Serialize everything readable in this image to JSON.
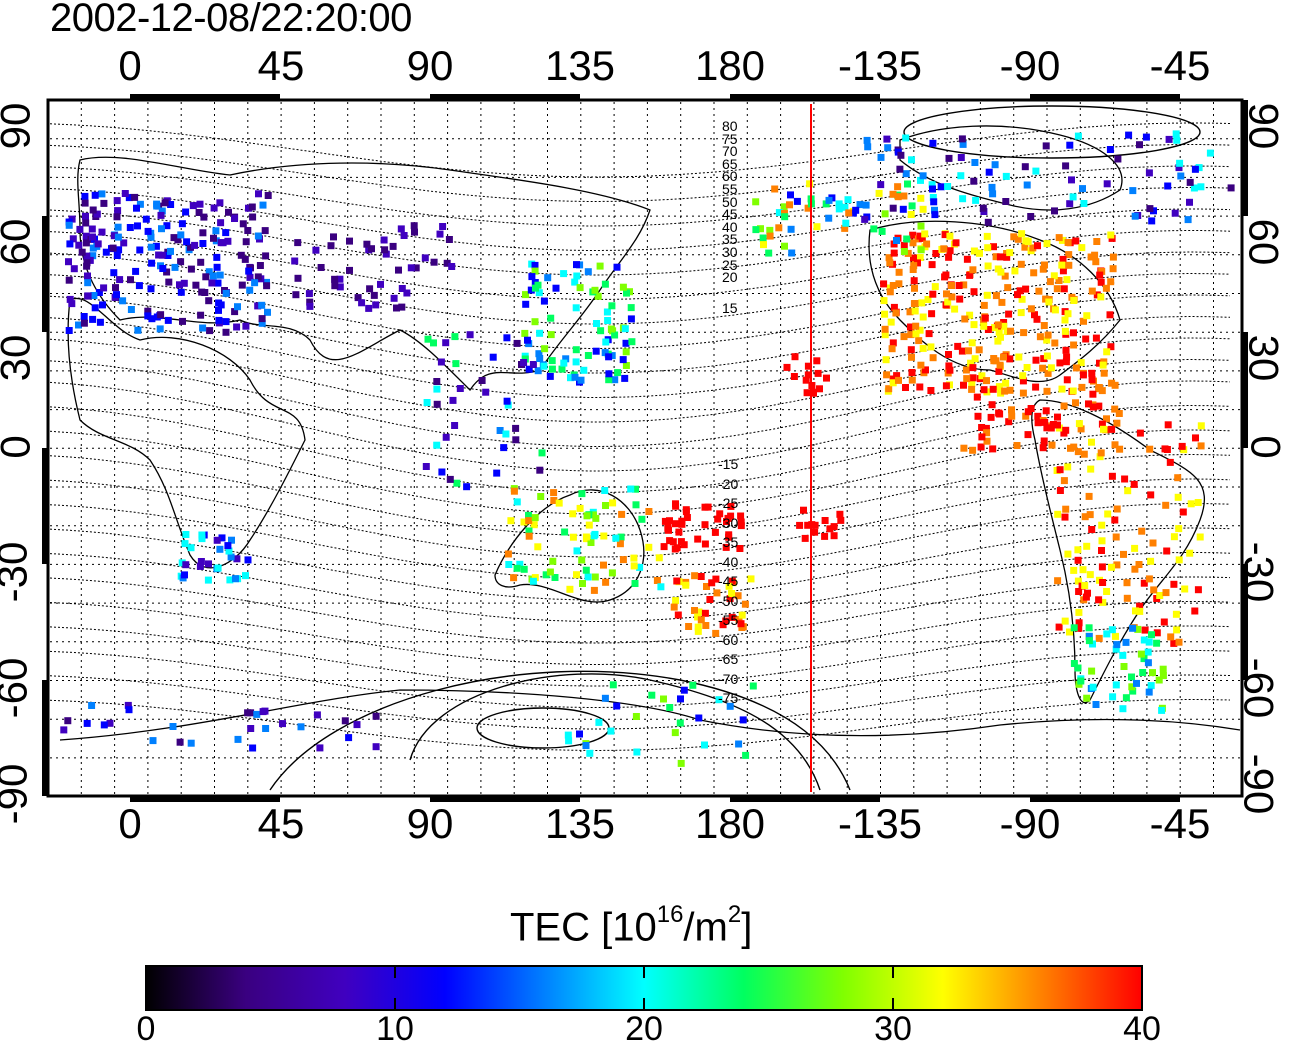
{
  "title": "2002-12-08/22:20:00",
  "map": {
    "top_lon_ticks": [
      "0",
      "45",
      "90",
      "135",
      "180",
      "-135",
      "-90",
      "-45"
    ],
    "bottom_lon_ticks": [
      "0",
      "45",
      "90",
      "135",
      "180",
      "-135",
      "-90",
      "-45"
    ],
    "left_lat_ticks": [
      "90",
      "60",
      "30",
      "0",
      "-30",
      "-60",
      "-90"
    ],
    "right_lat_ticks": [
      "90",
      "60",
      "30",
      "0",
      "-30",
      "-60",
      "-90"
    ],
    "contour_labels_north": [
      "80",
      "75",
      "70",
      "65",
      "60",
      "55",
      "50",
      "45",
      "40",
      "35",
      "30",
      "25",
      "20",
      "15"
    ],
    "contour_labels_south": [
      "-15",
      "-20",
      "-25",
      "-30",
      "-35",
      "-40",
      "-45",
      "-50",
      "-55",
      "-60",
      "-65",
      "-70",
      "-75"
    ],
    "terminator_color": "#ff0000"
  },
  "colorbar": {
    "label_prefix": "TEC  [10",
    "label_exp1": "16",
    "label_mid": "/m",
    "label_exp2": "2",
    "label_suffix": "]",
    "ticks": [
      "0",
      "10",
      "20",
      "30",
      "40"
    ],
    "colors": [
      "#000000",
      "#3a0080",
      "#4000c0",
      "#0000ff",
      "#0080ff",
      "#00ffff",
      "#00ff60",
      "#80ff00",
      "#ffff00",
      "#ff8000",
      "#ff0000"
    ]
  }
}
